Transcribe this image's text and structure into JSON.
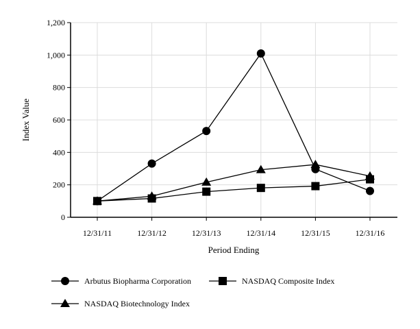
{
  "chart_data": {
    "type": "line",
    "title": "",
    "xlabel": "Period Ending",
    "ylabel": "Index Value",
    "categories": [
      "12/31/11",
      "12/31/12",
      "12/31/13",
      "12/31/14",
      "12/31/15",
      "12/31/16"
    ],
    "ylim": [
      0,
      1200
    ],
    "yticks": [
      0,
      200,
      400,
      600,
      800,
      1000,
      1200
    ],
    "ytick_labels": [
      "0",
      "200",
      "400",
      "600",
      "800",
      "1,000",
      "1,200"
    ],
    "grid": true,
    "legend_position": "bottom",
    "series": [
      {
        "name": "Arbutus Biopharma Corporation",
        "marker": "circle",
        "values": [
          100,
          331,
          532,
          1010,
          297,
          162
        ]
      },
      {
        "name": "NASDAQ Composite Index",
        "marker": "square",
        "values": [
          100,
          116,
          158,
          181,
          192,
          234
        ]
      },
      {
        "name": "NASDAQ Biotechnology Index",
        "marker": "triangle",
        "values": [
          100,
          130,
          216,
          293,
          325,
          254
        ]
      }
    ]
  }
}
